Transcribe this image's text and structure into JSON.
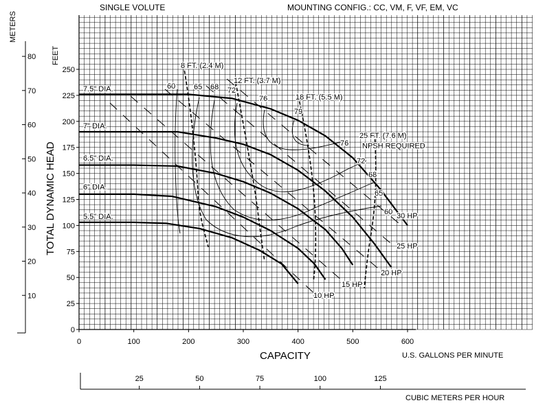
{
  "header": {
    "left": "SINGLE VOLUTE",
    "right": "MOUNTING CONFIG.:  CC,  VM,  F,  VF,  EM,  VC"
  },
  "chart_data": {
    "type": "line",
    "title": "",
    "xlabel": "CAPACITY",
    "xunit": "U.S. GALLONS PER MINUTE",
    "x2unit": "CUBIC METERS PER HOUR",
    "ylabel": "TOTAL DYNAMIC HEAD",
    "yunit": "FEET",
    "y2unit": "METERS",
    "xlim": [
      0,
      600
    ],
    "ylim": [
      0,
      250
    ],
    "xticks": [
      0,
      100,
      200,
      300,
      400,
      500,
      600
    ],
    "yticks": [
      0,
      25,
      50,
      75,
      100,
      125,
      150,
      175,
      200,
      225,
      250
    ],
    "x2ticks": [
      25,
      50,
      75,
      100,
      125
    ],
    "y2ticks": [
      10,
      20,
      30,
      40,
      50,
      60,
      70,
      80
    ],
    "grid": true,
    "impeller_curves": [
      {
        "name": "7.5\" DIA.",
        "points": [
          [
            0,
            226
          ],
          [
            100,
            226
          ],
          [
            200,
            226
          ],
          [
            280,
            222
          ],
          [
            350,
            212
          ],
          [
            400,
            201
          ],
          [
            450,
            186
          ],
          [
            500,
            165
          ],
          [
            550,
            135
          ],
          [
            600,
            100
          ]
        ]
      },
      {
        "name": "7\" DIA.",
        "points": [
          [
            0,
            190
          ],
          [
            100,
            190
          ],
          [
            180,
            190
          ],
          [
            250,
            184
          ],
          [
            300,
            178
          ],
          [
            350,
            168
          ],
          [
            400,
            153
          ],
          [
            450,
            133
          ],
          [
            500,
            108
          ],
          [
            540,
            82
          ],
          [
            570,
            60
          ]
        ]
      },
      {
        "name": "6.5\" DIA.",
        "points": [
          [
            0,
            158
          ],
          [
            100,
            158
          ],
          [
            180,
            157
          ],
          [
            250,
            150
          ],
          [
            300,
            142
          ],
          [
            350,
            131
          ],
          [
            400,
            116
          ],
          [
            450,
            96
          ],
          [
            480,
            78
          ],
          [
            500,
            62
          ]
        ]
      },
      {
        "name": "6\" DIA.",
        "points": [
          [
            0,
            130
          ],
          [
            100,
            130
          ],
          [
            170,
            128
          ],
          [
            250,
            118
          ],
          [
            300,
            108
          ],
          [
            350,
            95
          ],
          [
            400,
            78
          ],
          [
            430,
            63
          ],
          [
            450,
            48
          ]
        ]
      },
      {
        "name": "5.5\" DIA.",
        "points": [
          [
            0,
            103
          ],
          [
            100,
            103
          ],
          [
            160,
            102
          ],
          [
            220,
            97
          ],
          [
            280,
            88
          ],
          [
            330,
            76
          ],
          [
            370,
            63
          ],
          [
            400,
            44
          ]
        ]
      }
    ],
    "efficiency_labels": [
      "60",
      "65",
      "68",
      "72",
      "76",
      "79",
      "76",
      "72",
      "68",
      "65",
      "60"
    ],
    "npsh_labels": [
      "8 FT. (2.4 M)",
      "12 FT. (3.7 M)",
      "18 FT. (5.5 M)",
      "25 FT. (7.6 M)"
    ],
    "npsh_title": "NPSH REQUIRED",
    "hp_labels": [
      "10 HP",
      "15 HP",
      "20 HP",
      "25 HP",
      "30 HP"
    ]
  }
}
